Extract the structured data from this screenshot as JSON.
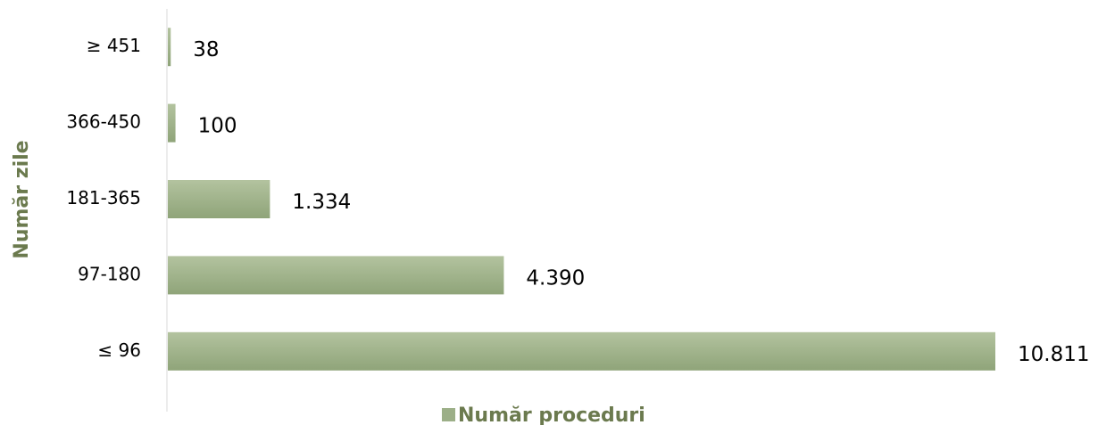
{
  "chart_data": {
    "type": "hbar",
    "y_label": "Număr zile",
    "categories": [
      "≤ 96",
      "97-180",
      "181-365",
      "366-450",
      "≥ 451"
    ],
    "series": [
      {
        "name": "Număr proceduri",
        "color": "#9caf88",
        "values": [
          10811,
          4390,
          1334,
          100,
          38
        ],
        "value_labels": [
          "10.811",
          "4.390",
          "1.334",
          "100",
          "38"
        ]
      }
    ],
    "legend": "bottom"
  }
}
